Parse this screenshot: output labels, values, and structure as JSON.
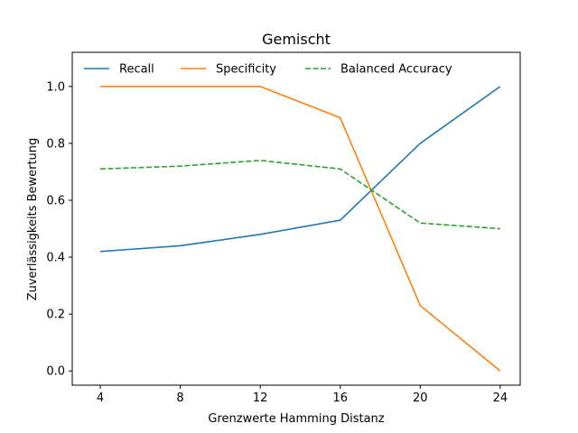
{
  "chart_data": {
    "type": "line",
    "title": "Gemischt",
    "xlabel": "Grenzwerte Hamming Distanz",
    "ylabel": "Zuverlässigkeits Bewertung",
    "x": [
      4,
      8,
      12,
      16,
      20,
      24
    ],
    "x_ticks": [
      "4",
      "8",
      "12",
      "16",
      "20",
      "24"
    ],
    "y_ticks": [
      "0.0",
      "0.2",
      "0.4",
      "0.6",
      "0.8",
      "1.0"
    ],
    "xlim": [
      2.6,
      25.0
    ],
    "ylim": [
      -0.05,
      1.12
    ],
    "grid": false,
    "legend_position": "top-left",
    "series": [
      {
        "name": "Recall",
        "color": "#1f77b4",
        "style": "solid",
        "values": [
          0.42,
          0.44,
          0.48,
          0.53,
          0.8,
          1.0
        ]
      },
      {
        "name": "Specificity",
        "color": "#ff7f0e",
        "style": "solid",
        "values": [
          1.0,
          1.0,
          1.0,
          0.89,
          0.23,
          0.0
        ]
      },
      {
        "name": "Balanced Accuracy",
        "color": "#2ca02c",
        "style": "dashed",
        "values": [
          0.71,
          0.72,
          0.74,
          0.71,
          0.52,
          0.5
        ]
      }
    ]
  }
}
